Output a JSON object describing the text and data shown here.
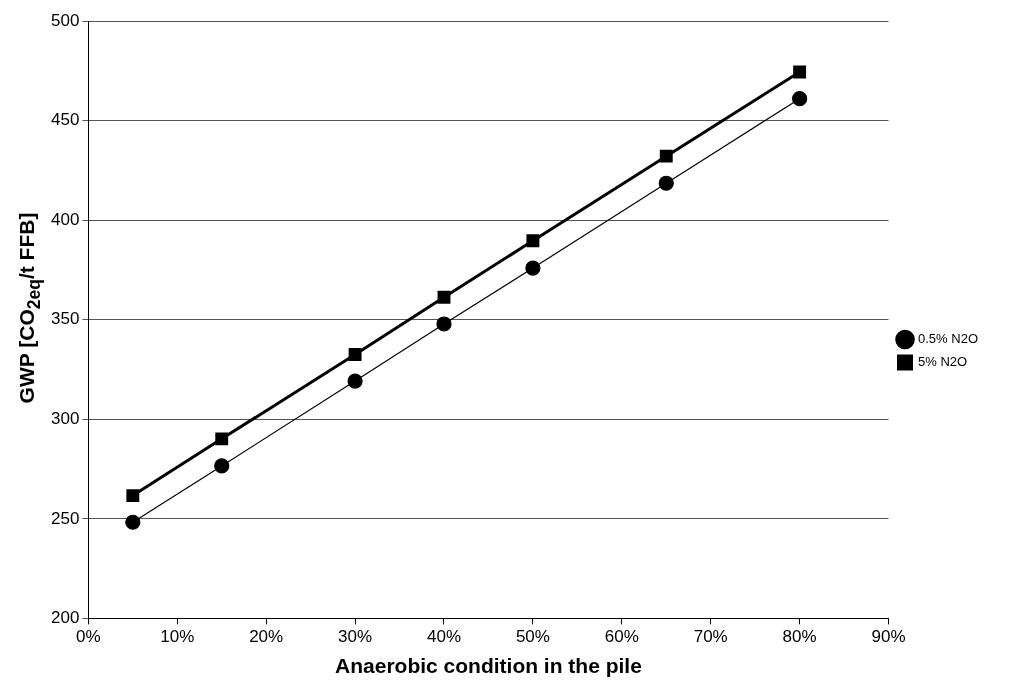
{
  "chart_data": {
    "type": "line",
    "xlabel": "Anaerobic condition in the pile",
    "ylabel": "GWP [CO$_{2eq}$/t FFB]",
    "x": [
      5,
      15,
      30,
      40,
      50,
      65,
      80
    ],
    "series": [
      {
        "name": "0.5% N2O",
        "color": "#000000",
        "marker": "circle",
        "values": [
          248.3,
          276.6,
          319.2,
          347.9,
          376,
          418.6,
          461.1
        ]
      },
      {
        "name": "5% N2O",
        "color": "#000000",
        "marker": "square",
        "values": [
          261.7,
          290.2,
          332.6,
          361.3,
          389.7,
          432.2,
          474.5
        ]
      }
    ],
    "xlim": [
      0,
      90
    ],
    "xticks": [
      {
        "value": 0,
        "label": "0%"
      },
      {
        "value": 10,
        "label": "10%"
      },
      {
        "value": 20,
        "label": "20%"
      },
      {
        "value": 30,
        "label": "30%"
      },
      {
        "value": 40,
        "label": "40%"
      },
      {
        "value": 50,
        "label": "50%"
      },
      {
        "value": 60,
        "label": "60%"
      },
      {
        "value": 70,
        "label": "70%"
      },
      {
        "value": 80,
        "label": "80%"
      },
      {
        "value": 90,
        "label": "90%"
      }
    ],
    "ylim": [
      200,
      500
    ],
    "yticks": [
      200,
      250,
      300,
      350,
      400,
      450,
      500
    ],
    "grid": "y",
    "legend": "right",
    "line_style": "solid"
  }
}
